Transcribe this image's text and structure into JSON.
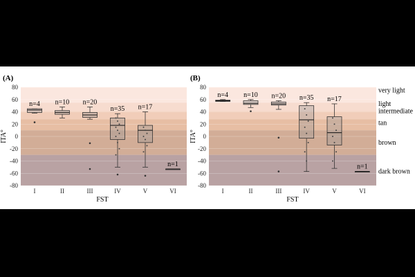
{
  "colors": {
    "frame_background": "#000000",
    "figure_background": "#ffffff",
    "band_very_light": "#fbe7df",
    "band_light": "#f7dccf",
    "band_intermediate": "#f1cdb9",
    "band_tan": "#e7bea4",
    "band_brown": "#d2ad97",
    "band_dark_brown": "#b9a2a3",
    "box_fill": "rgba(150,150,150,0.35)",
    "box_stroke": "#333333"
  },
  "skin_bands": [
    {
      "name": "very light",
      "from": 55,
      "to": 90,
      "color_key": "band_very_light"
    },
    {
      "name": "light",
      "from": 41,
      "to": 55,
      "color_key": "band_light"
    },
    {
      "name": "intermediate",
      "from": 28,
      "to": 41,
      "color_key": "band_intermediate"
    },
    {
      "name": "tan",
      "from": 10,
      "to": 28,
      "color_key": "band_tan"
    },
    {
      "name": "brown",
      "from": -30,
      "to": 10,
      "color_key": "band_brown"
    },
    {
      "name": "dark brown",
      "from": -80,
      "to": -30,
      "color_key": "band_dark_brown"
    }
  ],
  "chart_data": [
    {
      "type": "box",
      "panel_label": "(A)",
      "xlabel": "FST",
      "ylabel": "ITA°",
      "ylim": [
        -80,
        80
      ],
      "yticks": [
        80,
        60,
        40,
        20,
        0,
        -20,
        -40,
        -60,
        -80
      ],
      "categories": [
        "I",
        "II",
        "III",
        "IV",
        "V",
        "VI"
      ],
      "n_labels": [
        "n=4",
        "n=10",
        "n=20",
        "n=35",
        "n=17",
        "n=1"
      ],
      "boxes": [
        {
          "category": "I",
          "min": 38,
          "q1": 39,
          "median": 43,
          "q3": 45,
          "max": 45,
          "outliers": [
            23
          ]
        },
        {
          "category": "II",
          "min": 30,
          "q1": 36,
          "median": 39,
          "q3": 42,
          "max": 48,
          "outliers": []
        },
        {
          "category": "III",
          "min": 28,
          "q1": 31,
          "median": 35,
          "q3": 39,
          "max": 48,
          "outliers": [
            -11,
            -53
          ]
        },
        {
          "category": "IV",
          "min": -50,
          "q1": -5,
          "median": 18,
          "q3": 30,
          "max": 37,
          "outliers": [
            -62
          ]
        },
        {
          "category": "V",
          "min": -50,
          "q1": -10,
          "median": 10,
          "q3": 18,
          "max": 40,
          "outliers": [
            -64
          ]
        },
        {
          "category": "VI",
          "min": -53,
          "q1": -53,
          "median": -53,
          "q3": -53,
          "max": -53,
          "outliers": []
        }
      ],
      "points": [
        {
          "category": "IV",
          "values": [
            30,
            25,
            20,
            15,
            10,
            5,
            0,
            -10,
            -20,
            -30
          ]
        },
        {
          "category": "V",
          "values": [
            15,
            10,
            5,
            0,
            -5,
            -15,
            -25
          ]
        }
      ]
    },
    {
      "type": "box",
      "panel_label": "(B)",
      "xlabel": "FST",
      "ylabel": "ITA°",
      "ylim": [
        -80,
        80
      ],
      "yticks": [
        80,
        60,
        40,
        20,
        0,
        -20,
        -40,
        -60,
        -80
      ],
      "categories": [
        "I",
        "II",
        "III",
        "IV",
        "V",
        "VI"
      ],
      "n_labels": [
        "n=4",
        "n=10",
        "n=20",
        "n=35",
        "n=17",
        "n=1"
      ],
      "boxes": [
        {
          "category": "I",
          "min": 57,
          "q1": 57,
          "median": 58,
          "q3": 59,
          "max": 60,
          "outliers": []
        },
        {
          "category": "II",
          "min": 47,
          "q1": 52,
          "median": 54,
          "q3": 58,
          "max": 60,
          "outliers": [
            41
          ]
        },
        {
          "category": "III",
          "min": 44,
          "q1": 51,
          "median": 53,
          "q3": 56,
          "max": 58,
          "outliers": [
            -2,
            -57
          ]
        },
        {
          "category": "IV",
          "min": -57,
          "q1": -3,
          "median": 27,
          "q3": 50,
          "max": 55,
          "outliers": []
        },
        {
          "category": "V",
          "min": -52,
          "q1": -14,
          "median": 6,
          "q3": 32,
          "max": 53,
          "outliers": []
        },
        {
          "category": "VI",
          "min": -57,
          "q1": -57,
          "median": -57,
          "q3": -57,
          "max": -57,
          "outliers": []
        }
      ],
      "points": [
        {
          "category": "IV",
          "values": [
            45,
            35,
            25,
            15,
            5,
            -10,
            -25,
            -40
          ]
        },
        {
          "category": "V",
          "values": [
            30,
            20,
            10,
            0,
            -10,
            -25,
            -40
          ]
        }
      ]
    }
  ]
}
